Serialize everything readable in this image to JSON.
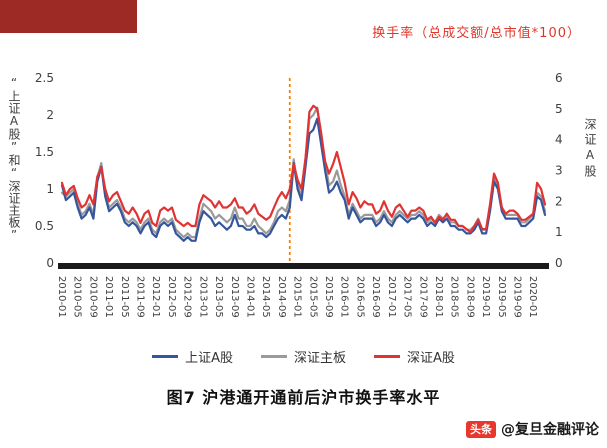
{
  "header": {
    "axis_note": "换手率（总成交额/总市值*100）"
  },
  "chart": {
    "left_axis_title": "“上证A股”和“深证主板”",
    "right_axis_title": "深证A股",
    "caption": "图7 沪港通开通前后沪市换手率水平"
  },
  "watermark": {
    "logo": "头条",
    "text": "@复旦金融评论"
  },
  "colors": {
    "brand_block": "#9e2a25",
    "axis_note": "#e0362a",
    "axis_bar": "#1a1a1a",
    "tick_text": "#404040",
    "watermark_logo_bg": "#e8372c"
  },
  "chart_data": {
    "type": "line",
    "title": "图7 沪港通开通前后沪市换手率水平",
    "x_start": "2010-01",
    "x_frequency": "monthly",
    "n_points": 124,
    "x_tick_labels": [
      "2010-01",
      "2010-05",
      "2010-09",
      "2011-01",
      "2011-05",
      "2011-09",
      "2012-01",
      "2012-05",
      "2012-09",
      "2013-01",
      "2013-05",
      "2013-09",
      "2014-01",
      "2014-05",
      "2014-09",
      "2015-01",
      "2015-05",
      "2015-09",
      "2016-01",
      "2016-05",
      "2016-09",
      "2017-01",
      "2017-05",
      "2017-09",
      "2018-01",
      "2018-05",
      "2018-09",
      "2019-01",
      "2019-05",
      "2019-09",
      "2020-01"
    ],
    "left_axis": {
      "min": 0,
      "max": 2.5,
      "ticks": [
        0,
        0.5,
        1,
        1.5,
        2,
        2.5
      ]
    },
    "right_axis": {
      "min": 0,
      "max": 6,
      "ticks": [
        0,
        1,
        2,
        3,
        4,
        5,
        6
      ]
    },
    "event_line": {
      "label": "2014-11",
      "month_index": 58,
      "color": "#f08300",
      "style": "dashed"
    },
    "legend_position": "bottom",
    "grid": false,
    "series": [
      {
        "id": "sh-a",
        "name": "上证A股",
        "axis": "left",
        "color": "#35569d",
        "values": [
          1.05,
          0.85,
          0.9,
          0.95,
          0.75,
          0.6,
          0.65,
          0.75,
          0.6,
          1.1,
          1.3,
          0.9,
          0.7,
          0.75,
          0.8,
          0.7,
          0.55,
          0.5,
          0.55,
          0.5,
          0.4,
          0.5,
          0.55,
          0.4,
          0.35,
          0.5,
          0.55,
          0.5,
          0.55,
          0.4,
          0.35,
          0.3,
          0.35,
          0.3,
          0.3,
          0.55,
          0.7,
          0.65,
          0.6,
          0.5,
          0.55,
          0.5,
          0.45,
          0.5,
          0.65,
          0.5,
          0.5,
          0.45,
          0.45,
          0.5,
          0.4,
          0.4,
          0.35,
          0.4,
          0.5,
          0.6,
          0.65,
          0.6,
          0.75,
          1.35,
          1.0,
          0.85,
          1.3,
          1.75,
          1.8,
          1.95,
          1.6,
          1.25,
          0.95,
          1.0,
          1.1,
          0.95,
          0.85,
          0.6,
          0.75,
          0.65,
          0.55,
          0.6,
          0.6,
          0.6,
          0.5,
          0.55,
          0.65,
          0.55,
          0.5,
          0.6,
          0.65,
          0.6,
          0.55,
          0.6,
          0.6,
          0.65,
          0.6,
          0.5,
          0.55,
          0.5,
          0.6,
          0.55,
          0.6,
          0.5,
          0.5,
          0.45,
          0.45,
          0.4,
          0.4,
          0.45,
          0.55,
          0.4,
          0.4,
          0.7,
          1.1,
          1.0,
          0.7,
          0.6,
          0.6,
          0.6,
          0.6,
          0.5,
          0.5,
          0.55,
          0.6,
          0.9,
          0.85,
          0.65
        ]
      },
      {
        "id": "sz-main",
        "name": "深证主板",
        "axis": "left",
        "color": "#9a9a9a",
        "values": [
          0.95,
          0.9,
          0.95,
          1.0,
          0.8,
          0.65,
          0.7,
          0.8,
          0.65,
          1.15,
          1.35,
          0.95,
          0.75,
          0.8,
          0.85,
          0.75,
          0.6,
          0.55,
          0.6,
          0.55,
          0.45,
          0.55,
          0.6,
          0.45,
          0.4,
          0.55,
          0.6,
          0.55,
          0.6,
          0.45,
          0.4,
          0.35,
          0.4,
          0.35,
          0.35,
          0.6,
          0.8,
          0.75,
          0.7,
          0.6,
          0.65,
          0.6,
          0.55,
          0.6,
          0.75,
          0.6,
          0.6,
          0.5,
          0.5,
          0.6,
          0.5,
          0.45,
          0.4,
          0.45,
          0.55,
          0.7,
          0.75,
          0.7,
          0.85,
          1.4,
          1.05,
          0.9,
          1.4,
          1.95,
          2.0,
          2.1,
          1.75,
          1.35,
          1.05,
          1.1,
          1.25,
          1.05,
          0.9,
          0.65,
          0.8,
          0.7,
          0.6,
          0.65,
          0.65,
          0.65,
          0.55,
          0.6,
          0.7,
          0.6,
          0.55,
          0.65,
          0.7,
          0.65,
          0.6,
          0.65,
          0.65,
          0.7,
          0.65,
          0.55,
          0.6,
          0.55,
          0.65,
          0.6,
          0.65,
          0.55,
          0.55,
          0.5,
          0.5,
          0.45,
          0.45,
          0.5,
          0.6,
          0.45,
          0.45,
          0.75,
          1.15,
          1.05,
          0.75,
          0.65,
          0.65,
          0.65,
          0.65,
          0.55,
          0.55,
          0.6,
          0.65,
          0.95,
          0.9,
          0.7
        ]
      },
      {
        "id": "sz-a",
        "name": "深证A股",
        "axis": "right",
        "color": "#e03333",
        "values": [
          2.6,
          2.2,
          2.4,
          2.5,
          2.1,
          1.8,
          1.9,
          2.2,
          1.9,
          2.8,
          3.1,
          2.4,
          2.0,
          2.2,
          2.3,
          2.0,
          1.7,
          1.6,
          1.8,
          1.6,
          1.3,
          1.6,
          1.7,
          1.3,
          1.2,
          1.7,
          1.8,
          1.7,
          1.8,
          1.4,
          1.3,
          1.2,
          1.3,
          1.2,
          1.2,
          1.9,
          2.2,
          2.1,
          2.0,
          1.8,
          2.0,
          1.8,
          1.8,
          1.9,
          2.1,
          1.8,
          1.8,
          1.6,
          1.7,
          1.9,
          1.6,
          1.5,
          1.4,
          1.5,
          1.8,
          2.1,
          2.3,
          2.1,
          2.4,
          3.2,
          2.7,
          2.4,
          3.4,
          4.9,
          5.1,
          5.0,
          4.2,
          3.3,
          2.9,
          3.2,
          3.6,
          3.1,
          2.6,
          1.9,
          2.3,
          2.1,
          1.8,
          2.0,
          1.9,
          1.9,
          1.6,
          1.7,
          2.0,
          1.7,
          1.5,
          1.8,
          1.9,
          1.7,
          1.5,
          1.7,
          1.7,
          1.8,
          1.7,
          1.4,
          1.5,
          1.3,
          1.5,
          1.4,
          1.6,
          1.4,
          1.4,
          1.2,
          1.2,
          1.1,
          1.0,
          1.2,
          1.4,
          1.1,
          1.1,
          1.9,
          2.9,
          2.6,
          1.8,
          1.6,
          1.7,
          1.7,
          1.6,
          1.4,
          1.4,
          1.5,
          1.6,
          2.6,
          2.4,
          1.9
        ]
      }
    ]
  }
}
